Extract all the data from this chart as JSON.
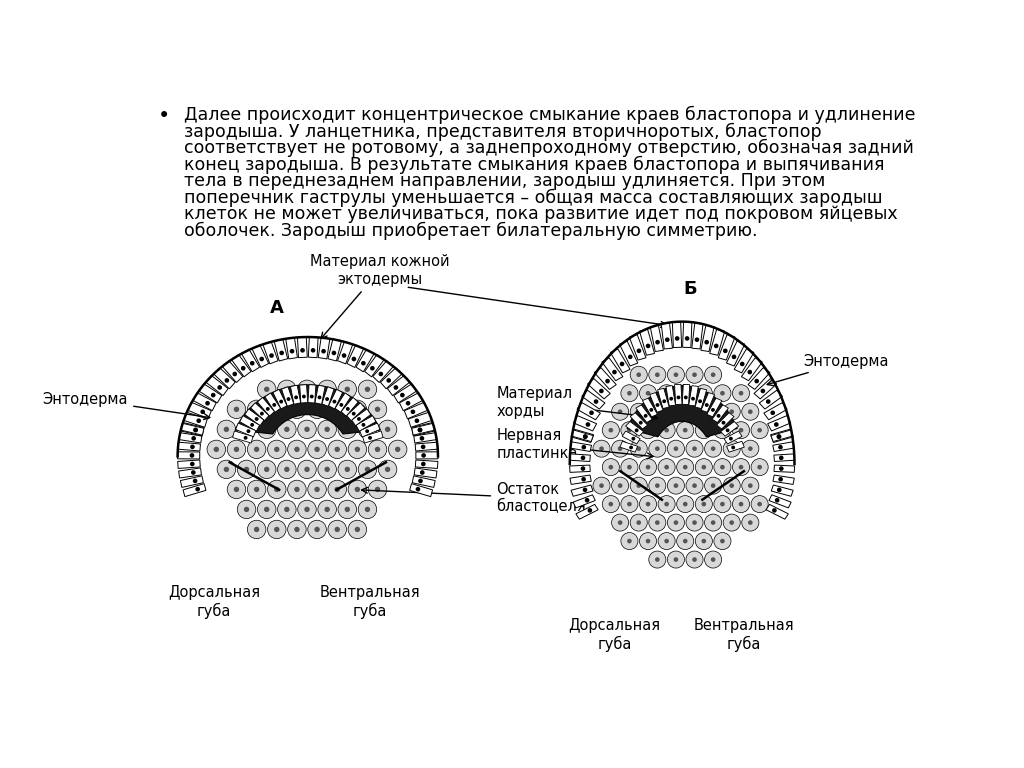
{
  "background_color": "#ffffff",
  "text_color": "#000000",
  "fs_text": 12.5,
  "fs_label": 10.5,
  "fs_title_ab": 13,
  "bullet_lines": [
    "Далее происходит концентрическое смыкание краев бластопора и удлинение",
    "зародыша. У ланцетника, представителя вторичноротых, бластопор",
    "соответствует не ротовому, а заднепроходному отверстию, обозначая задний",
    "конец зародыша. В результате смыкания краев бластопора и выпячивания",
    "тела в переднезаднем направлении, зародыш удлиняется. При этом",
    "поперечник гаструлы уменьшается – общая масса составляющих зародыш",
    "клеток не может увеличиваться, пока развитие идет под покровом яйцевых",
    "оболочек. Зародыш приобретает билатеральную симметрию."
  ],
  "label_A": "А",
  "label_B": "Б",
  "lbl_entoderm_A": "Энтодерма",
  "lbl_mat_skin": "Материал кожной\nэктодермы",
  "lbl_dorsal_A": "Дорсальная\nгуба",
  "lbl_ventral_A": "Вентральная\nгуба",
  "lbl_mat_chord": "Материал\nхорды",
  "lbl_nerve": "Нервная\nпластинка",
  "lbl_blastocoel": "Остаток\nбластоцеля",
  "lbl_entoderm_B": "Энтодерма",
  "lbl_dorsal_B": "Дорсальная\nгуба",
  "lbl_ventral_B": "Вентральная\nгуба"
}
